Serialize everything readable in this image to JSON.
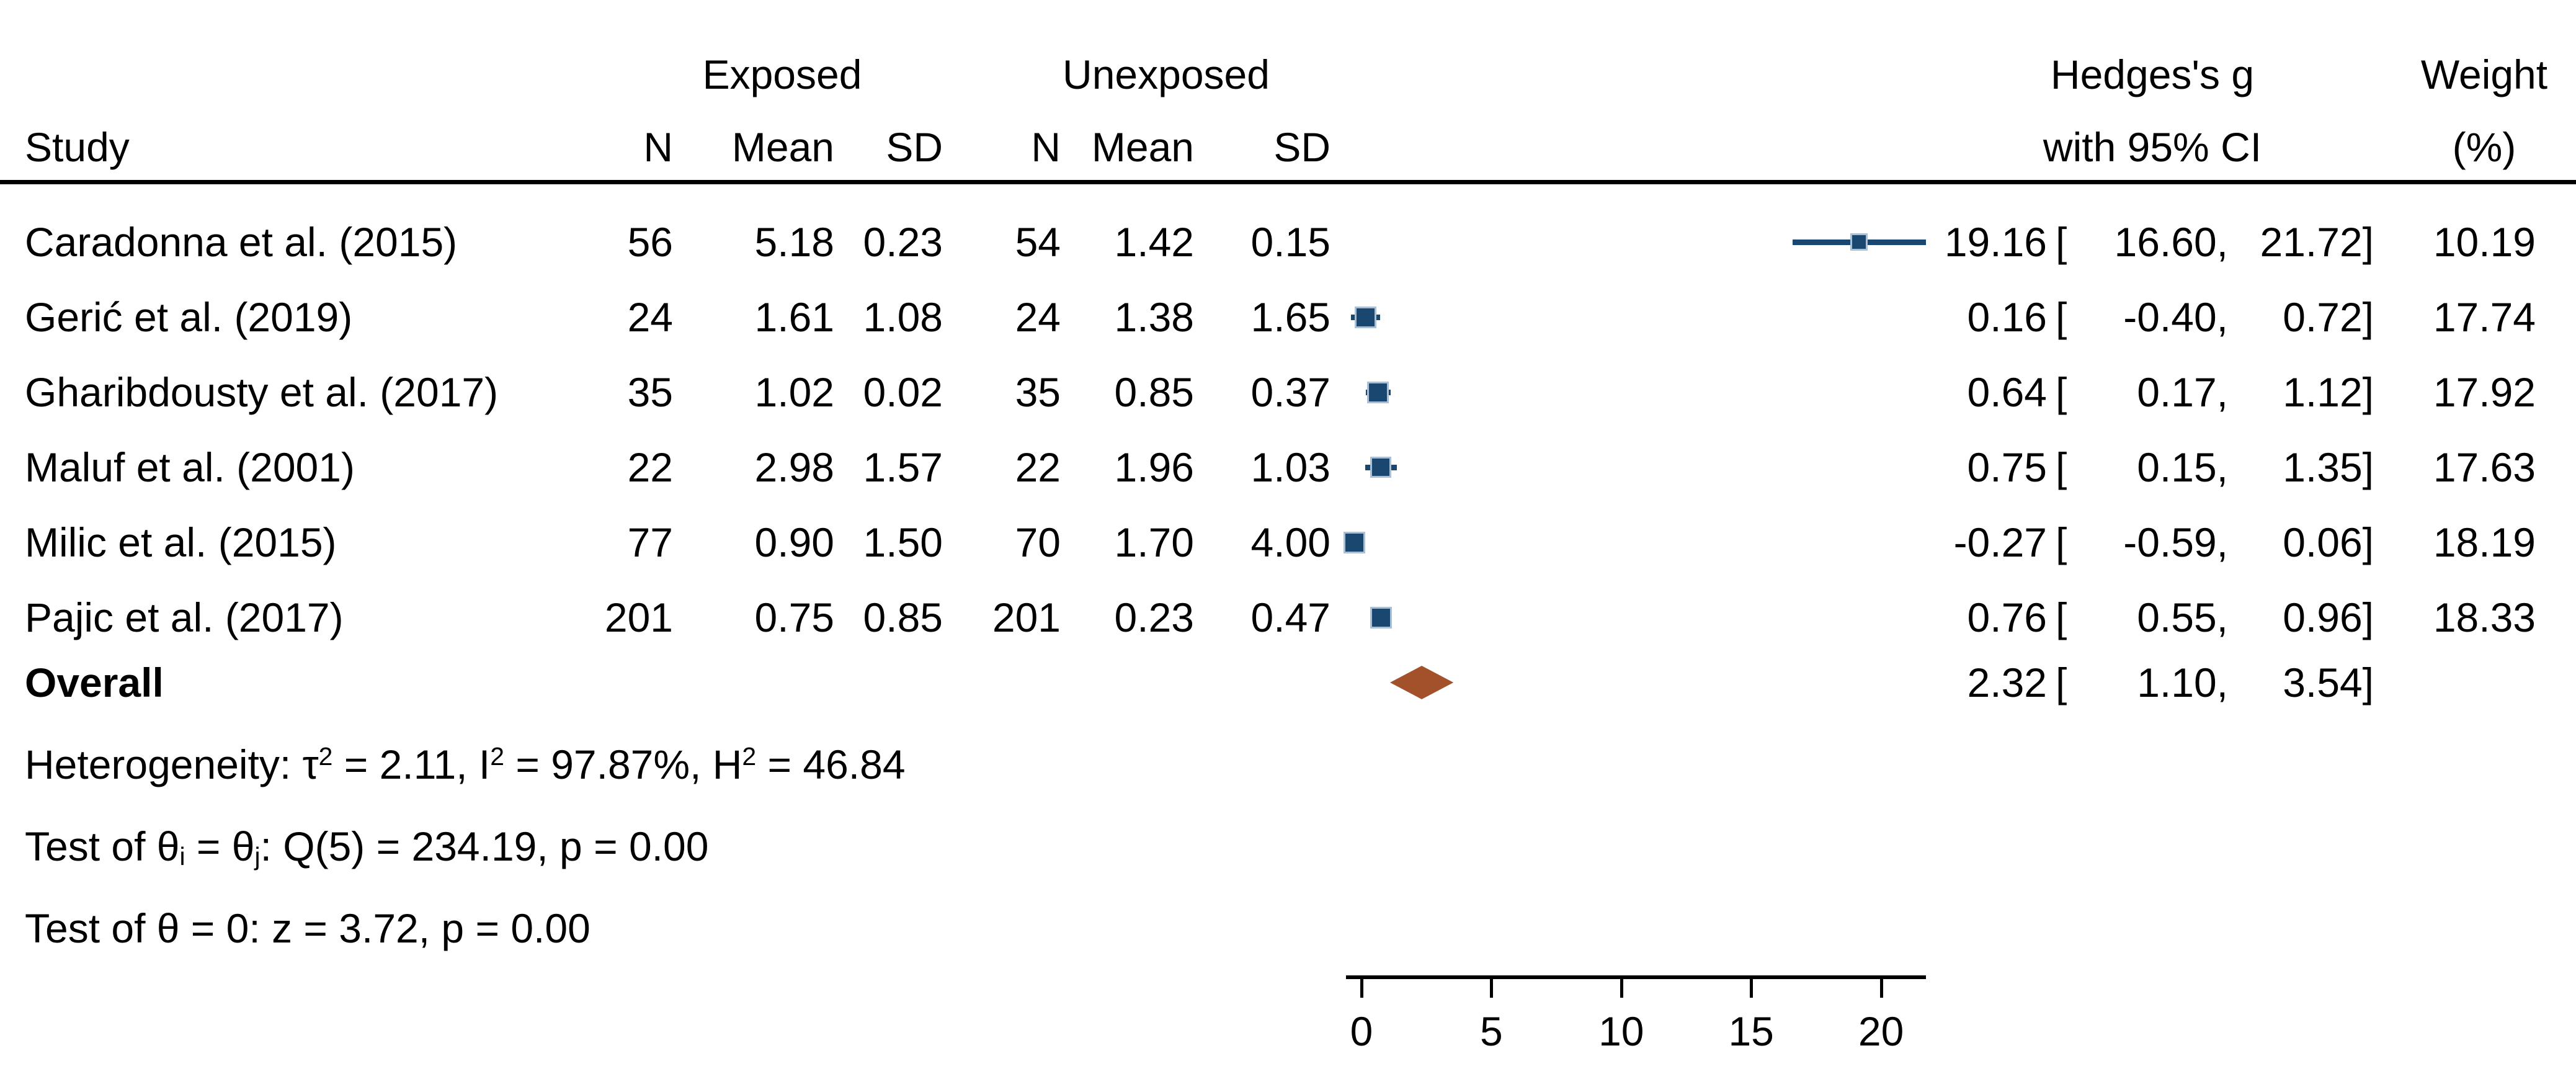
{
  "page": {
    "background": "#ffffff"
  },
  "colors": {
    "marker_fill": "#1A476F",
    "marker_halo": "#A9C0D6",
    "diamond_fill": "#A2512B",
    "text": "#000000",
    "rule": "#000000"
  },
  "header": {
    "study": "Study",
    "exposed": "Exposed",
    "unexposed": "Unexposed",
    "n": "N",
    "mean": "Mean",
    "sd": "SD",
    "effect_line1": "Hedges's g",
    "effect_line2": "with 95% CI",
    "weight_line1": "Weight",
    "weight_line2": "(%)"
  },
  "stats_lines": {
    "heterogeneity": [
      {
        "t": "Heterogeneity: τ"
      },
      {
        "sup": "2"
      },
      {
        "t": " = 2.11, I"
      },
      {
        "sup": "2"
      },
      {
        "t": " = 97.87%, H"
      },
      {
        "sup": "2"
      },
      {
        "t": " = 46.84"
      }
    ],
    "test_group": [
      {
        "t": "Test of θ"
      },
      {
        "sub": "i"
      },
      {
        "t": " = θ"
      },
      {
        "sub": "j"
      },
      {
        "t": ": Q(5) = 234.19, p = 0.00"
      }
    ],
    "test_zero": [
      {
        "t": "Test of θ = 0: z = 3.72, p = 0.00"
      }
    ]
  },
  "chart_data": {
    "type": "forest",
    "title": "",
    "effect_measure": "Hedges's g with 95% CI",
    "group_labels": {
      "treatment": "Exposed",
      "control": "Unexposed"
    },
    "x_axis": {
      "ticks": [
        0,
        5,
        10,
        15,
        20
      ],
      "range_shown": [
        0,
        21.72
      ],
      "grid": false
    },
    "studies": [
      {
        "study": "Caradonna et al. (2015)",
        "exposed": {
          "n": 56,
          "mean": 5.18,
          "sd": 0.23
        },
        "unexposed": {
          "n": 54,
          "mean": 1.42,
          "sd": 0.15
        },
        "effect": 19.16,
        "ci": [
          16.6,
          21.72
        ],
        "weight_pct": 10.19
      },
      {
        "study": "Gerić et al. (2019)",
        "exposed": {
          "n": 24,
          "mean": 1.61,
          "sd": 1.08
        },
        "unexposed": {
          "n": 24,
          "mean": 1.38,
          "sd": 1.65
        },
        "effect": 0.16,
        "ci": [
          -0.4,
          0.72
        ],
        "weight_pct": 17.74
      },
      {
        "study": "Gharibdousty et al. (2017)",
        "exposed": {
          "n": 35,
          "mean": 1.02,
          "sd": 0.02
        },
        "unexposed": {
          "n": 35,
          "mean": 0.85,
          "sd": 0.37
        },
        "effect": 0.64,
        "ci": [
          0.17,
          1.12
        ],
        "weight_pct": 17.92
      },
      {
        "study": "Maluf et al. (2001)",
        "exposed": {
          "n": 22,
          "mean": 2.98,
          "sd": 1.57
        },
        "unexposed": {
          "n": 22,
          "mean": 1.96,
          "sd": 1.03
        },
        "effect": 0.75,
        "ci": [
          0.15,
          1.35
        ],
        "weight_pct": 17.63
      },
      {
        "study": "Milic et al. (2015)",
        "exposed": {
          "n": 77,
          "mean": 0.9,
          "sd": 1.5
        },
        "unexposed": {
          "n": 70,
          "mean": 1.7,
          "sd": 4.0
        },
        "effect": -0.27,
        "ci": [
          -0.59,
          0.06
        ],
        "weight_pct": 18.19
      },
      {
        "study": "Pajic et al. (2017)",
        "exposed": {
          "n": 201,
          "mean": 0.75,
          "sd": 0.85
        },
        "unexposed": {
          "n": 201,
          "mean": 0.23,
          "sd": 0.47
        },
        "effect": 0.76,
        "ci": [
          0.55,
          0.96
        ],
        "weight_pct": 18.33
      }
    ],
    "overall": {
      "label": "Overall",
      "effect": 2.32,
      "ci": [
        1.1,
        3.54
      ]
    },
    "heterogeneity": {
      "tau2": 2.11,
      "I2_pct": 97.87,
      "H2": 46.84
    },
    "test_of_group_equality": {
      "Q_df": 5,
      "Q": 234.19,
      "p": 0.0
    },
    "test_of_zero": {
      "z": 3.72,
      "p": 0.0
    }
  }
}
